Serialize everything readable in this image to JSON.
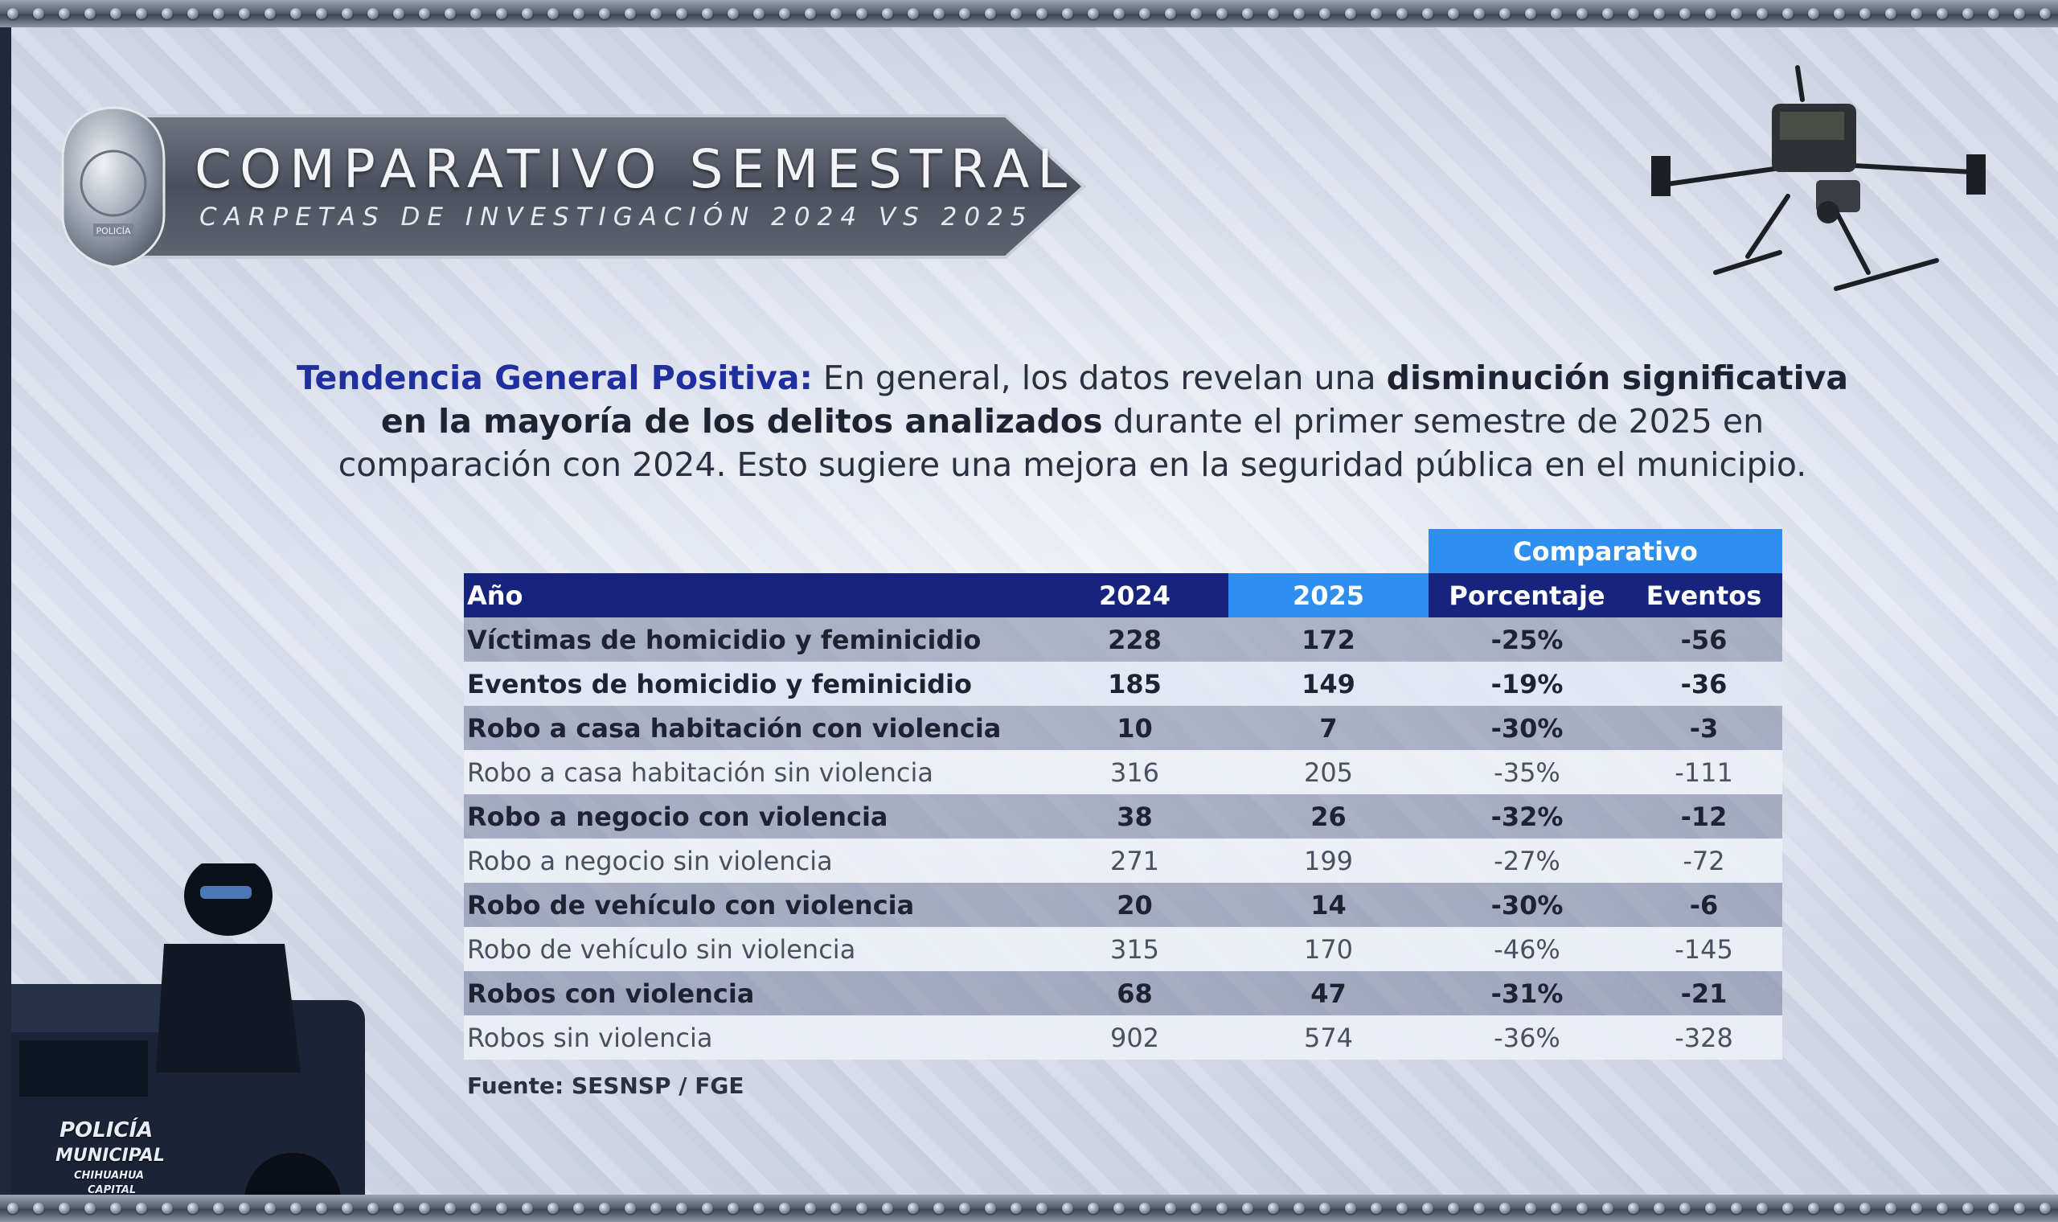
{
  "header": {
    "title": "COMPARATIVO SEMESTRAL",
    "subtitle": "CARPETAS DE INVESTIGACIÓN 2024 VS 2025"
  },
  "badge": {
    "icon": "police-badge-icon",
    "text": "POLICÍA"
  },
  "summary": {
    "lead": "Tendencia General Positiva:",
    "text1": " En general, los datos revelan una ",
    "bold1": "disminución significativa en la mayoría de los delitos analizados",
    "text2": " durante el primer semestre de 2025 en comparación con 2024. Esto sugiere una mejora en la seguridad pública en el municipio."
  },
  "table": {
    "group_header": "Comparativo",
    "headers": {
      "label": "Año",
      "y2024": "2024",
      "y2025": "2025",
      "pct": "Porcentaje",
      "events": "Eventos"
    },
    "rows": [
      {
        "label": "Víctimas de homicidio y feminicidio",
        "y2024": "228",
        "y2025": "172",
        "pct": "-25%",
        "events": "-56"
      },
      {
        "label": "Eventos de homicidio y feminicidio",
        "y2024": "185",
        "y2025": "149",
        "pct": "-19%",
        "events": "-36"
      },
      {
        "label": "Robo a casa habitación con violencia",
        "y2024": "10",
        "y2025": "7",
        "pct": "-30%",
        "events": "-3"
      },
      {
        "label": "Robo a casa habitación sin violencia",
        "y2024": "316",
        "y2025": "205",
        "pct": "-35%",
        "events": "-111"
      },
      {
        "label": "Robo a negocio con violencia",
        "y2024": "38",
        "y2025": "26",
        "pct": "-32%",
        "events": "-12"
      },
      {
        "label": "Robo a negocio sin violencia",
        "y2024": "271",
        "y2025": "199",
        "pct": "-27%",
        "events": "-72"
      },
      {
        "label": "Robo de vehículo con violencia",
        "y2024": "20",
        "y2025": "14",
        "pct": "-30%",
        "events": "-6"
      },
      {
        "label": "Robo de vehículo sin violencia",
        "y2024": "315",
        "y2025": "170",
        "pct": "-46%",
        "events": "-145"
      },
      {
        "label": "Robos con violencia",
        "y2024": "68",
        "y2025": "47",
        "pct": "-31%",
        "events": "-21"
      },
      {
        "label": "Robos sin violencia",
        "y2024": "902",
        "y2025": "574",
        "pct": "-36%",
        "events": "-328"
      }
    ]
  },
  "source": "Fuente: SESNSP / FGE",
  "vehicle": {
    "line1": "POLICÍA",
    "line2": "MUNICIPAL",
    "line3": "CHIHUAHUA",
    "line4": "CAPITAL"
  },
  "images": {
    "drone": "drone-icon",
    "officer": "police-officer-vehicle-image"
  },
  "colors": {
    "header_navy": "#16247e",
    "header_blue": "#2f8ff0",
    "lead_text": "#1f2fa0"
  }
}
